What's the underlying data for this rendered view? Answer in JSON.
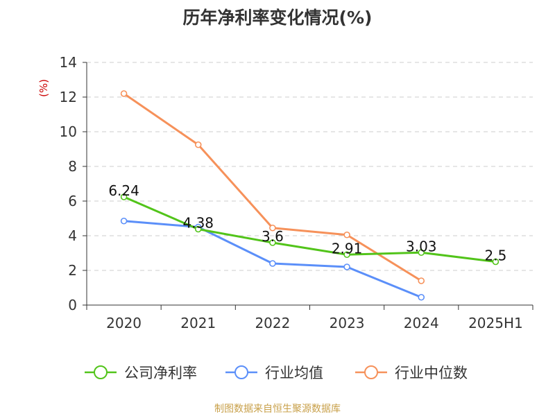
{
  "chart_data": {
    "type": "line",
    "title": "历年净利率变化情况(%)",
    "ylabel": "(%)",
    "categories": [
      "2020",
      "2021",
      "2022",
      "2023",
      "2024",
      "2025H1"
    ],
    "ylim": [
      0,
      14
    ],
    "yticks": [
      0,
      2,
      4,
      6,
      8,
      10,
      12,
      14
    ],
    "grid": true,
    "legend_position": "bottom",
    "series": [
      {
        "name": "公司净利率",
        "color": "#52c41a",
        "values": [
          6.24,
          4.38,
          3.6,
          2.91,
          3.03,
          2.5
        ],
        "labels": [
          "6.24",
          "4.38",
          "3.6",
          "2.91",
          "3.03",
          "2.5"
        ]
      },
      {
        "name": "行业均值",
        "color": "#5b8ff9",
        "values": [
          4.85,
          4.5,
          2.4,
          2.2,
          0.45,
          null
        ],
        "labels": null
      },
      {
        "name": "行业中位数",
        "color": "#f6915a",
        "values": [
          12.2,
          9.25,
          4.45,
          4.05,
          1.4,
          null
        ],
        "labels": null
      }
    ],
    "source": "制图数据来自恒生聚源数据库"
  },
  "colors": {
    "axis": "#333333",
    "grid": "#cccccc",
    "ylabel": "#cc0000",
    "source": "#c8a04a"
  }
}
